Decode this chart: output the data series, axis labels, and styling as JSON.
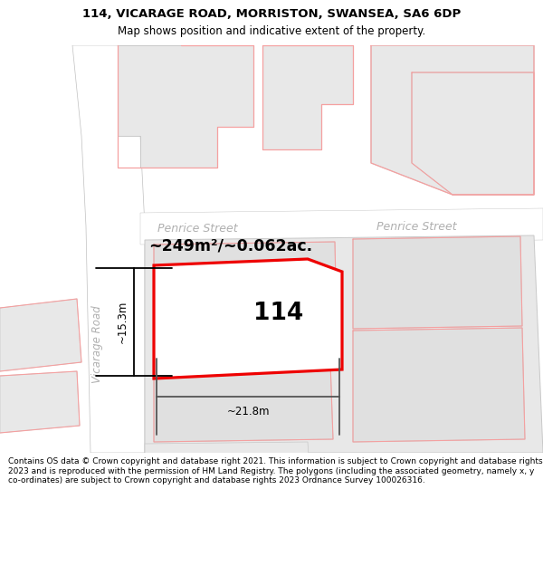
{
  "title_line1": "114, VICARAGE ROAD, MORRISTON, SWANSEA, SA6 6DP",
  "title_line2": "Map shows position and indicative extent of the property.",
  "footer": "Contains OS data © Crown copyright and database right 2021. This information is subject to Crown copyright and database rights 2023 and is reproduced with the permission of HM Land Registry. The polygons (including the associated geometry, namely x, y co-ordinates) are subject to Crown copyright and database rights 2023 Ordnance Survey 100026316.",
  "bg_color": "#ffffff",
  "map_bg": "#ffffff",
  "bld_fill": "#e8e8e8",
  "bld_edge": "#c8c8c8",
  "road_fill": "#ffffff",
  "pink": "#f5a0a0",
  "red": "#ee0000",
  "gray_line": "#c0c0c0",
  "label_114": "114",
  "area_label": "~249m²/~0.062ac.",
  "street1": "Penrice Street",
  "street2": "Penrice Street",
  "road_name": "Vicarage Road",
  "dim_w": "~21.8m",
  "dim_h": "~15.3m"
}
